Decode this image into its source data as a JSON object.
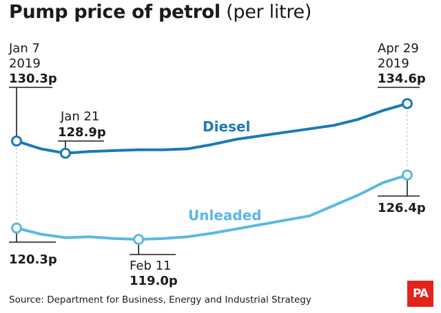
{
  "header": {
    "title_bold": "Pump price of petrol",
    "title_rest": "(per litre)"
  },
  "footer": {
    "source": "Source: Department for Business, Energy and Industrial Strategy",
    "logo_text": "PA"
  },
  "colors": {
    "diesel": "#1a7ab5",
    "unleaded": "#5bb8e0",
    "leader": "#1a1a1a",
    "dashed": "#bbbbbb",
    "logo_bg": "#e2231a"
  },
  "chart_data": {
    "type": "line",
    "title": "Pump price of petrol (per litre)",
    "xlabel": "",
    "ylabel": "",
    "ylim": [
      118,
      136
    ],
    "x_start": "Jan 7 2019",
    "x_end": "Apr 29 2019",
    "x_weeks": [
      0,
      1,
      2,
      3,
      4,
      5,
      6,
      7,
      8,
      9,
      10,
      11,
      12,
      13,
      14,
      15,
      16
    ],
    "series": [
      {
        "name": "Diesel",
        "values": [
          130.3,
          129.4,
          128.9,
          129.1,
          129.2,
          129.3,
          129.3,
          129.4,
          129.9,
          130.5,
          130.9,
          131.3,
          131.7,
          132.1,
          132.8,
          133.8,
          134.6
        ]
      },
      {
        "name": "Unleaded",
        "values": [
          120.3,
          119.6,
          119.2,
          119.3,
          119.1,
          119.0,
          119.1,
          119.3,
          119.7,
          120.2,
          120.7,
          121.2,
          121.7,
          122.9,
          124.1,
          125.5,
          126.4
        ]
      }
    ],
    "annotations": [
      {
        "series": 0,
        "index": 0,
        "date": "Jan 7",
        "year": "2019",
        "value": "130.3p"
      },
      {
        "series": 0,
        "index": 2,
        "date": "Jan 21",
        "year": "",
        "value": "128.9p"
      },
      {
        "series": 0,
        "index": 16,
        "date": "Apr 29",
        "year": "2019",
        "value": "134.6p"
      },
      {
        "series": 1,
        "index": 0,
        "date": "",
        "year": "",
        "value": "120.3p"
      },
      {
        "series": 1,
        "index": 5,
        "date": "Feb 11",
        "year": "",
        "value": "119.0p"
      },
      {
        "series": 1,
        "index": 16,
        "date": "",
        "year": "",
        "value": "126.4p"
      }
    ]
  }
}
